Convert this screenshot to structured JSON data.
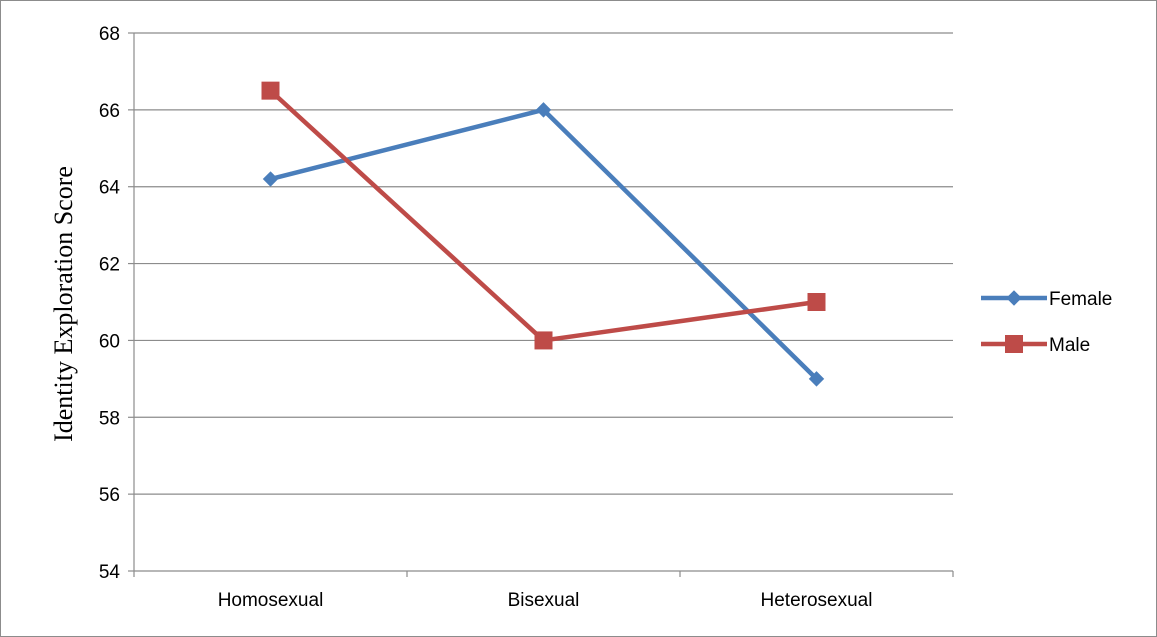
{
  "chart_data": {
    "type": "line",
    "categories": [
      "Homosexual",
      "Bisexual",
      "Heterosexual"
    ],
    "series": [
      {
        "name": "Female",
        "values": [
          64.2,
          66.0,
          59.0
        ],
        "color": "#4a7ebb",
        "marker": "diamond"
      },
      {
        "name": "Male",
        "values": [
          66.5,
          60.0,
          61.0
        ],
        "color": "#be4b48",
        "marker": "square"
      }
    ],
    "title": "",
    "xlabel": "",
    "ylabel": "Identity Exploration Score",
    "ylim": [
      54,
      68
    ],
    "yticks": [
      54,
      56,
      58,
      60,
      62,
      64,
      66,
      68
    ],
    "grid": true,
    "legend_position": "right"
  }
}
